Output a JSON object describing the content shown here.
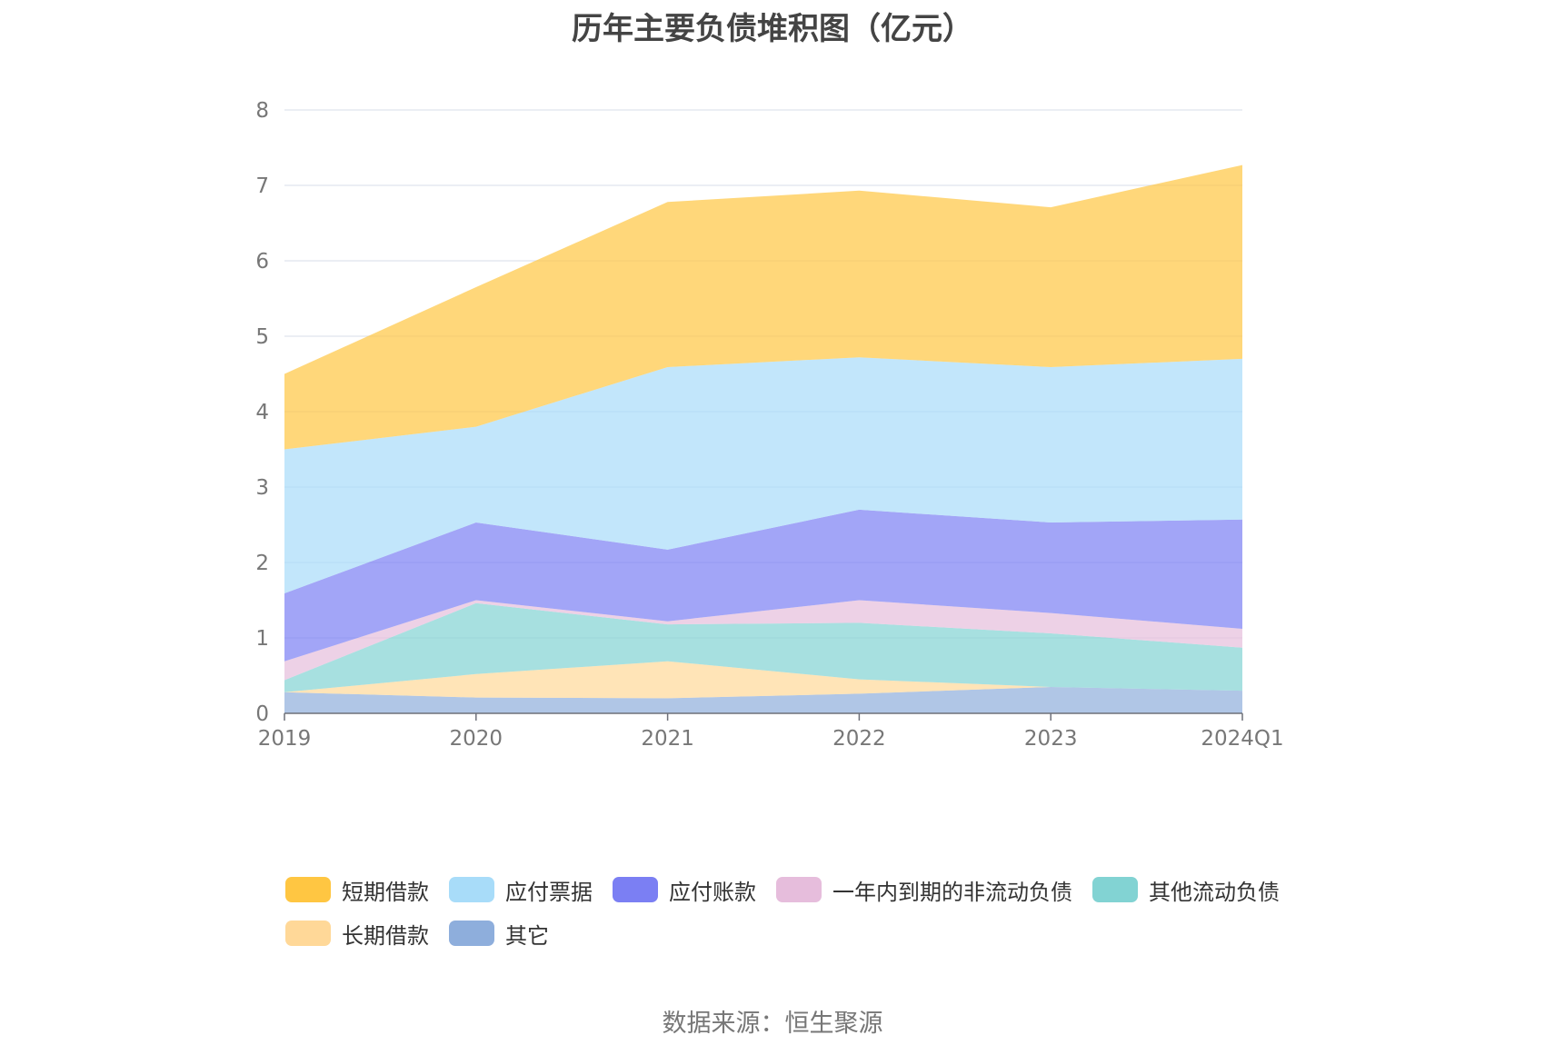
{
  "title": "历年主要负债堆积图（亿元）",
  "source": "数据来源：恒生聚源",
  "chart_data": {
    "type": "area",
    "stacked": true,
    "categories": [
      "2019",
      "2020",
      "2021",
      "2022",
      "2023",
      "2024Q1"
    ],
    "ylim": [
      0,
      8
    ],
    "yticks": [
      "0",
      "1",
      "2",
      "3",
      "4",
      "5",
      "6",
      "7",
      "8"
    ],
    "grid": true,
    "legend_position": "bottom",
    "series": [
      {
        "name": "其它",
        "color": "#8eaedc",
        "values": [
          0.28,
          0.21,
          0.2,
          0.26,
          0.35,
          0.3
        ]
      },
      {
        "name": "长期借款",
        "color": "#ffd898",
        "values": [
          0.0,
          0.31,
          0.49,
          0.19,
          0.0,
          0.0
        ]
      },
      {
        "name": "其他流动负债",
        "color": "#82d3d3",
        "values": [
          0.16,
          0.94,
          0.49,
          0.75,
          0.71,
          0.57
        ]
      },
      {
        "name": "一年内到期的非流动负债",
        "color": "#e6bddc",
        "values": [
          0.25,
          0.04,
          0.04,
          0.3,
          0.27,
          0.25
        ]
      },
      {
        "name": "应付账款",
        "color": "#7b7ff3",
        "values": [
          0.9,
          1.03,
          0.95,
          1.2,
          1.2,
          1.45
        ]
      },
      {
        "name": "应付票据",
        "color": "#a8dcf9",
        "values": [
          1.91,
          1.27,
          2.42,
          2.02,
          2.06,
          2.13
        ]
      },
      {
        "name": "短期借款",
        "color": "#ffc642",
        "values": [
          1.0,
          1.85,
          2.19,
          2.21,
          2.12,
          2.57
        ]
      }
    ],
    "legend_order": [
      "短期借款",
      "应付票据",
      "应付账款",
      "一年内到期的非流动负债",
      "其他流动负债",
      "长期借款",
      "其它"
    ]
  }
}
